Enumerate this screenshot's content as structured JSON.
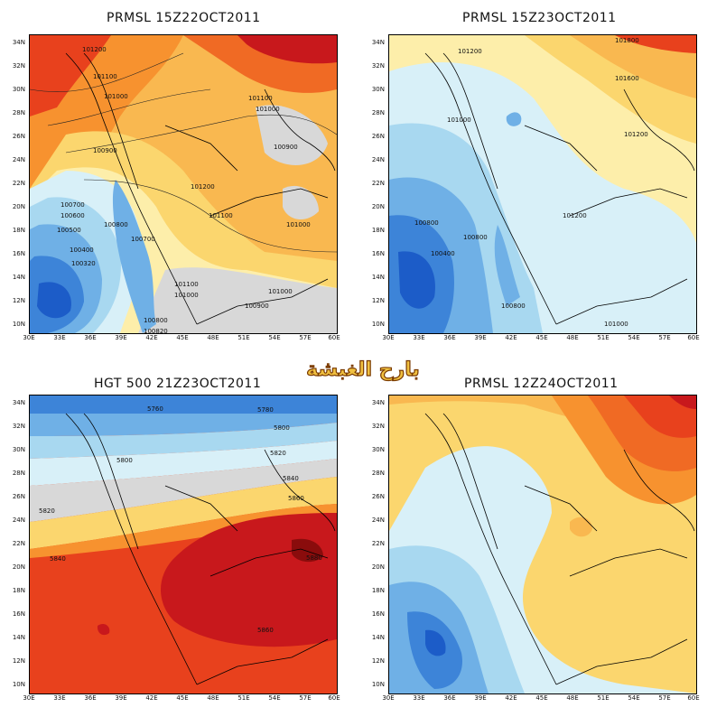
{
  "panels": [
    {
      "title": "PRMSL 15Z22OCT2011"
    },
    {
      "title": "PRMSL 15Z23OCT2011"
    },
    {
      "title": "HGT 500 21Z23OCT2011"
    },
    {
      "title": "PRMSL 12Z24OCT2011"
    }
  ],
  "axes": {
    "lat_ticks": [
      "34N",
      "32N",
      "30N",
      "28N",
      "26N",
      "24N",
      "22N",
      "20N",
      "18N",
      "16N",
      "14N",
      "12N",
      "10N"
    ],
    "lon_ticks": [
      "30E",
      "33E",
      "36E",
      "39E",
      "42E",
      "45E",
      "48E",
      "51E",
      "54E",
      "57E",
      "60E"
    ]
  },
  "contours": {
    "p1": [
      "101200",
      "101100",
      "101000",
      "101100",
      "101000",
      "100900",
      "100900",
      "101200",
      "101100",
      "100700",
      "100600",
      "100500",
      "100800",
      "100400",
      "100700",
      "100320",
      "101000",
      "101000",
      "100900",
      "100800",
      "100820",
      "101000",
      "101100"
    ],
    "p2": [
      "101200",
      "101800",
      "101600",
      "101000",
      "101200",
      "101200",
      "100800",
      "100800",
      "100400",
      "100800",
      "101000"
    ],
    "p3": [
      "5760",
      "5780",
      "5800",
      "5800",
      "5820",
      "5820",
      "5840",
      "5840",
      "5860",
      "5880",
      "5860"
    ]
  },
  "watermark": {
    "text": "بارح الغبشة",
    "color": "#7a3a00"
  },
  "colors": {
    "deep_red": "#c8181c",
    "red": "#e8411d",
    "orange_red": "#f06a24",
    "orange": "#f7922f",
    "light_orange": "#f9b850",
    "yellow": "#fbd66e",
    "pale_yellow": "#fdeeaa",
    "gray": "#d8d8d8",
    "pale_blue": "#d8f0f8",
    "light_blue": "#a8d8f0",
    "mid_blue": "#6fb0e6",
    "blue": "#3d84d8",
    "deep_blue": "#1c5cc8"
  }
}
